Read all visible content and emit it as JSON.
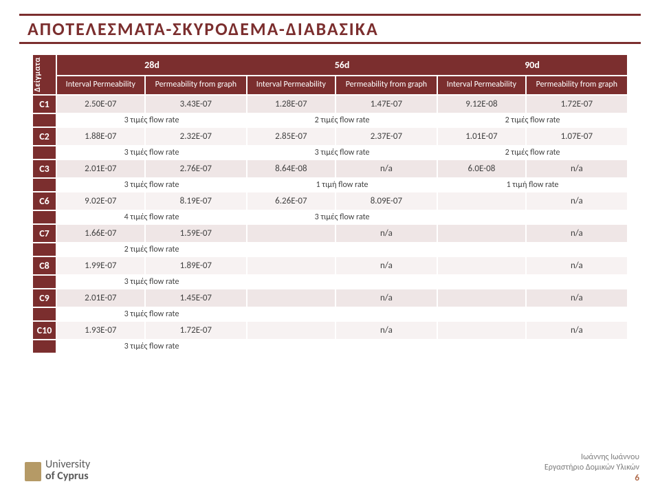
{
  "colors": {
    "brand": "#7b2e2e",
    "row_a": "#efe6e6",
    "row_b": "#f7f2f2",
    "text": "#404040",
    "divider": "#ffffff",
    "logo_badge": "#b59a66",
    "footer_text": "#7d7d7d",
    "page_number": "#b06a4a"
  },
  "typography": {
    "title_fontsize": 26,
    "header_fontsize": 14,
    "subheader_fontsize": 12,
    "cell_fontsize": 13,
    "note_fontsize": 12
  },
  "title": "ΑΠΟΤΕΛΕΣΜΑΤΑ-ΣΚΥΡΟΔΕΜΑ-ΔΙΑΒΑΣΙΚΑ",
  "row_header": "Δείγματα",
  "top_headers": [
    "28d",
    "56d",
    "90d"
  ],
  "sub_headers": {
    "a": "Interval Permeability",
    "b": "Permeability from graph"
  },
  "rows": [
    {
      "id": "C1",
      "vals": [
        "2.50E-07",
        "3.43E-07",
        "1.28E-07",
        "1.47E-07",
        "9.12E-08",
        "1.72E-07"
      ],
      "notes": [
        "3 τιμές flow rate",
        "2 τιμές flow rate",
        "2 τιμές flow rate"
      ]
    },
    {
      "id": "C2",
      "vals": [
        "1.88E-07",
        "2.32E-07",
        "2.85E-07",
        "2.37E-07",
        "1.01E-07",
        "1.07E-07"
      ],
      "notes": [
        "3 τιμές flow rate",
        "3 τιμές flow rate",
        "2 τιμές flow rate"
      ]
    },
    {
      "id": "C3",
      "vals": [
        "2.01E-07",
        "2.76E-07",
        "8.64E-08",
        "n/a",
        "6.0E-08",
        "n/a"
      ],
      "notes": [
        "3 τιμές flow rate",
        "1 τιμή flow rate",
        "1 τιμή flow rate"
      ]
    },
    {
      "id": "C6",
      "vals": [
        "9.02E-07",
        "8.19E-07",
        "6.26E-07",
        "8.09E-07",
        "",
        "n/a"
      ],
      "notes": [
        "4 τιμές flow rate",
        "3 τιμές flow rate",
        ""
      ]
    },
    {
      "id": "C7",
      "vals": [
        "1.66E-07",
        "1.59E-07",
        "",
        "n/a",
        "",
        "n/a"
      ],
      "notes": [
        "2 τιμές flow rate",
        "",
        ""
      ]
    },
    {
      "id": "C8",
      "vals": [
        "1.99E-07",
        "1.89E-07",
        "",
        "n/a",
        "",
        "n/a"
      ],
      "notes": [
        "3 τιμές flow rate",
        "",
        ""
      ]
    },
    {
      "id": "C9",
      "vals": [
        "2.01E-07",
        "1.45E-07",
        "",
        "n/a",
        "",
        "n/a"
      ],
      "notes": [
        "3 τιμές flow rate",
        "",
        ""
      ]
    },
    {
      "id": "C10",
      "vals": [
        "1.93E-07",
        "1.72E-07",
        "",
        "n/a",
        "",
        "n/a"
      ],
      "notes": [
        "3 τιμές flow rate",
        "",
        ""
      ]
    }
  ],
  "footer": {
    "uni1": "University",
    "uni2": "of Cyprus",
    "author": "Ιωάννης Ιωάννου",
    "lab": "Εργαστήριο Δομικών Υλικών",
    "page": "6"
  }
}
